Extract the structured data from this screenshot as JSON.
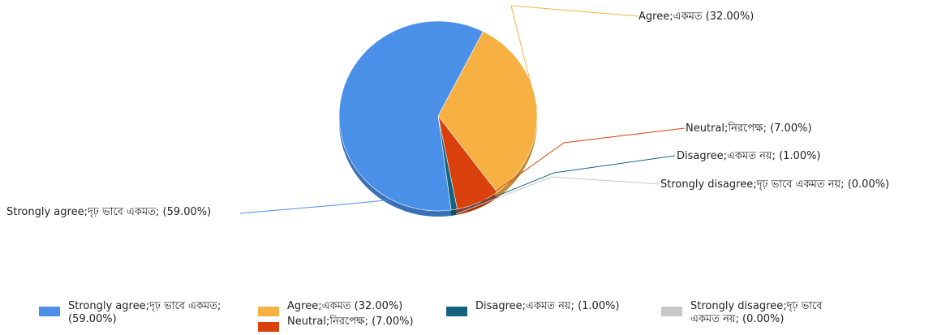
{
  "chart_data": {
    "type": "pie",
    "title": "",
    "slices": [
      {
        "label": "Strongly agree;দৃঢ় ভাবে একমত; (59.00%)",
        "value": 59.0,
        "color": "#4a8fe8"
      },
      {
        "label": "Agree;একমত (32.00%)",
        "value": 32.0,
        "color": "#f7b142"
      },
      {
        "label": "Neutral;নিরপেক্ষ; (7.00%)",
        "value": 7.0,
        "color": "#d9400b"
      },
      {
        "label": "Disagree;একমত নয়; (1.00%)",
        "value": 1.0,
        "color": "#16637f"
      },
      {
        "label": "Strongly disagree;দৃঢ় ভাবে একমত নয়; (0.00%)",
        "value": 0.0,
        "color": "#c8c8c8"
      }
    ],
    "legend": {
      "placement": "bottom",
      "entries": [
        {
          "line1": "Strongly agree;দৃঢ় ভাবে একমত;",
          "line2": "(59.00%)"
        },
        {
          "line1": "Agree;একমত (32.00%)",
          "line2": ""
        },
        {
          "line1": "Neutral;নিরপেক্ষ; (7.00%)",
          "line2": ""
        },
        {
          "line1": "Disagree;একমত নয়; (1.00%)",
          "line2": ""
        },
        {
          "line1": "Strongly disagree;দৃঢ় ভাবে",
          "line2": "একমত নয়; (0.00%)"
        }
      ]
    }
  }
}
